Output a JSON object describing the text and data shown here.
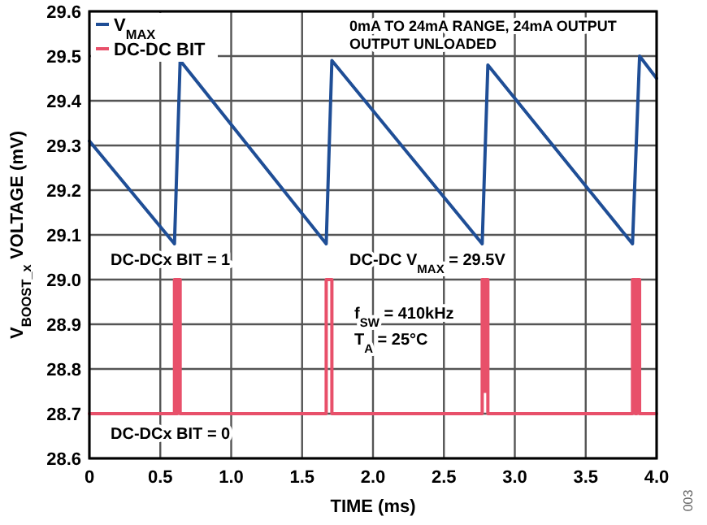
{
  "chart_data": {
    "type": "line",
    "xlabel": "TIME (ms)",
    "ylabel": "V$_{BOOST_x}$ VOLTAGE (mV)",
    "xlim": [
      0,
      4
    ],
    "ylim": [
      28.6,
      29.6
    ],
    "xticks": [
      {
        "value": 0,
        "label": "0"
      },
      0.5,
      {
        "value": 1,
        "label": "1.0"
      },
      1.5,
      {
        "value": 2,
        "label": "2.0"
      },
      2.5,
      {
        "value": 3,
        "label": "3.0"
      },
      3.5,
      {
        "value": 4,
        "label": "4.0"
      }
    ],
    "yticks": [
      28.6,
      28.7,
      28.8,
      28.9,
      {
        "value": 29,
        "label": "29.0"
      },
      29.1,
      29.2,
      29.3,
      29.4,
      29.5,
      29.6
    ],
    "grid": true,
    "legend": "top left",
    "marker": "none",
    "line_style": "solid",
    "series": [
      {
        "name": "V$_{MAX}$",
        "color": "#1f4e96",
        "x": [
          0,
          0.6,
          0.64,
          1.67,
          1.71,
          2.77,
          2.81,
          3.83,
          3.88,
          4.0
        ],
        "values": [
          29.31,
          29.08,
          29.49,
          29.08,
          29.49,
          29.08,
          29.48,
          29.08,
          29.5,
          29.45
        ]
      },
      {
        "name": "DC-DC BIT",
        "color": "#e8506a",
        "x": [
          0,
          0.6,
          0.6,
          0.612,
          0.612,
          0.62,
          0.62,
          0.64,
          0.64,
          1.67,
          1.67,
          1.71,
          1.71,
          2.77,
          2.77,
          2.785,
          2.785,
          2.795,
          2.795,
          2.81,
          2.81,
          3.83,
          3.83,
          3.85,
          3.85,
          3.86,
          3.86,
          3.88,
          3.88,
          4.0
        ],
        "values": [
          28.7,
          28.7,
          29.0,
          29.0,
          28.7,
          28.7,
          29.0,
          29.0,
          28.7,
          28.7,
          29.0,
          29.0,
          28.7,
          28.7,
          29.0,
          29.0,
          28.75,
          28.75,
          29.0,
          29.0,
          28.7,
          28.7,
          29.0,
          29.0,
          28.7,
          28.7,
          29.0,
          29.0,
          28.7,
          28.7
        ]
      }
    ],
    "annotations": [
      "0mA TO 24mA RANGE, 24mA OUTPUT",
      "OUTPUT UNLOADED",
      "DC-DCx BIT = 1",
      "DC-DC V$_{MAX}$ = 29.5V",
      "f$_{SW}$ = 410kHz",
      "T$_{A}$ = 25°C",
      "DC-DCx BIT = 0",
      "003"
    ]
  }
}
